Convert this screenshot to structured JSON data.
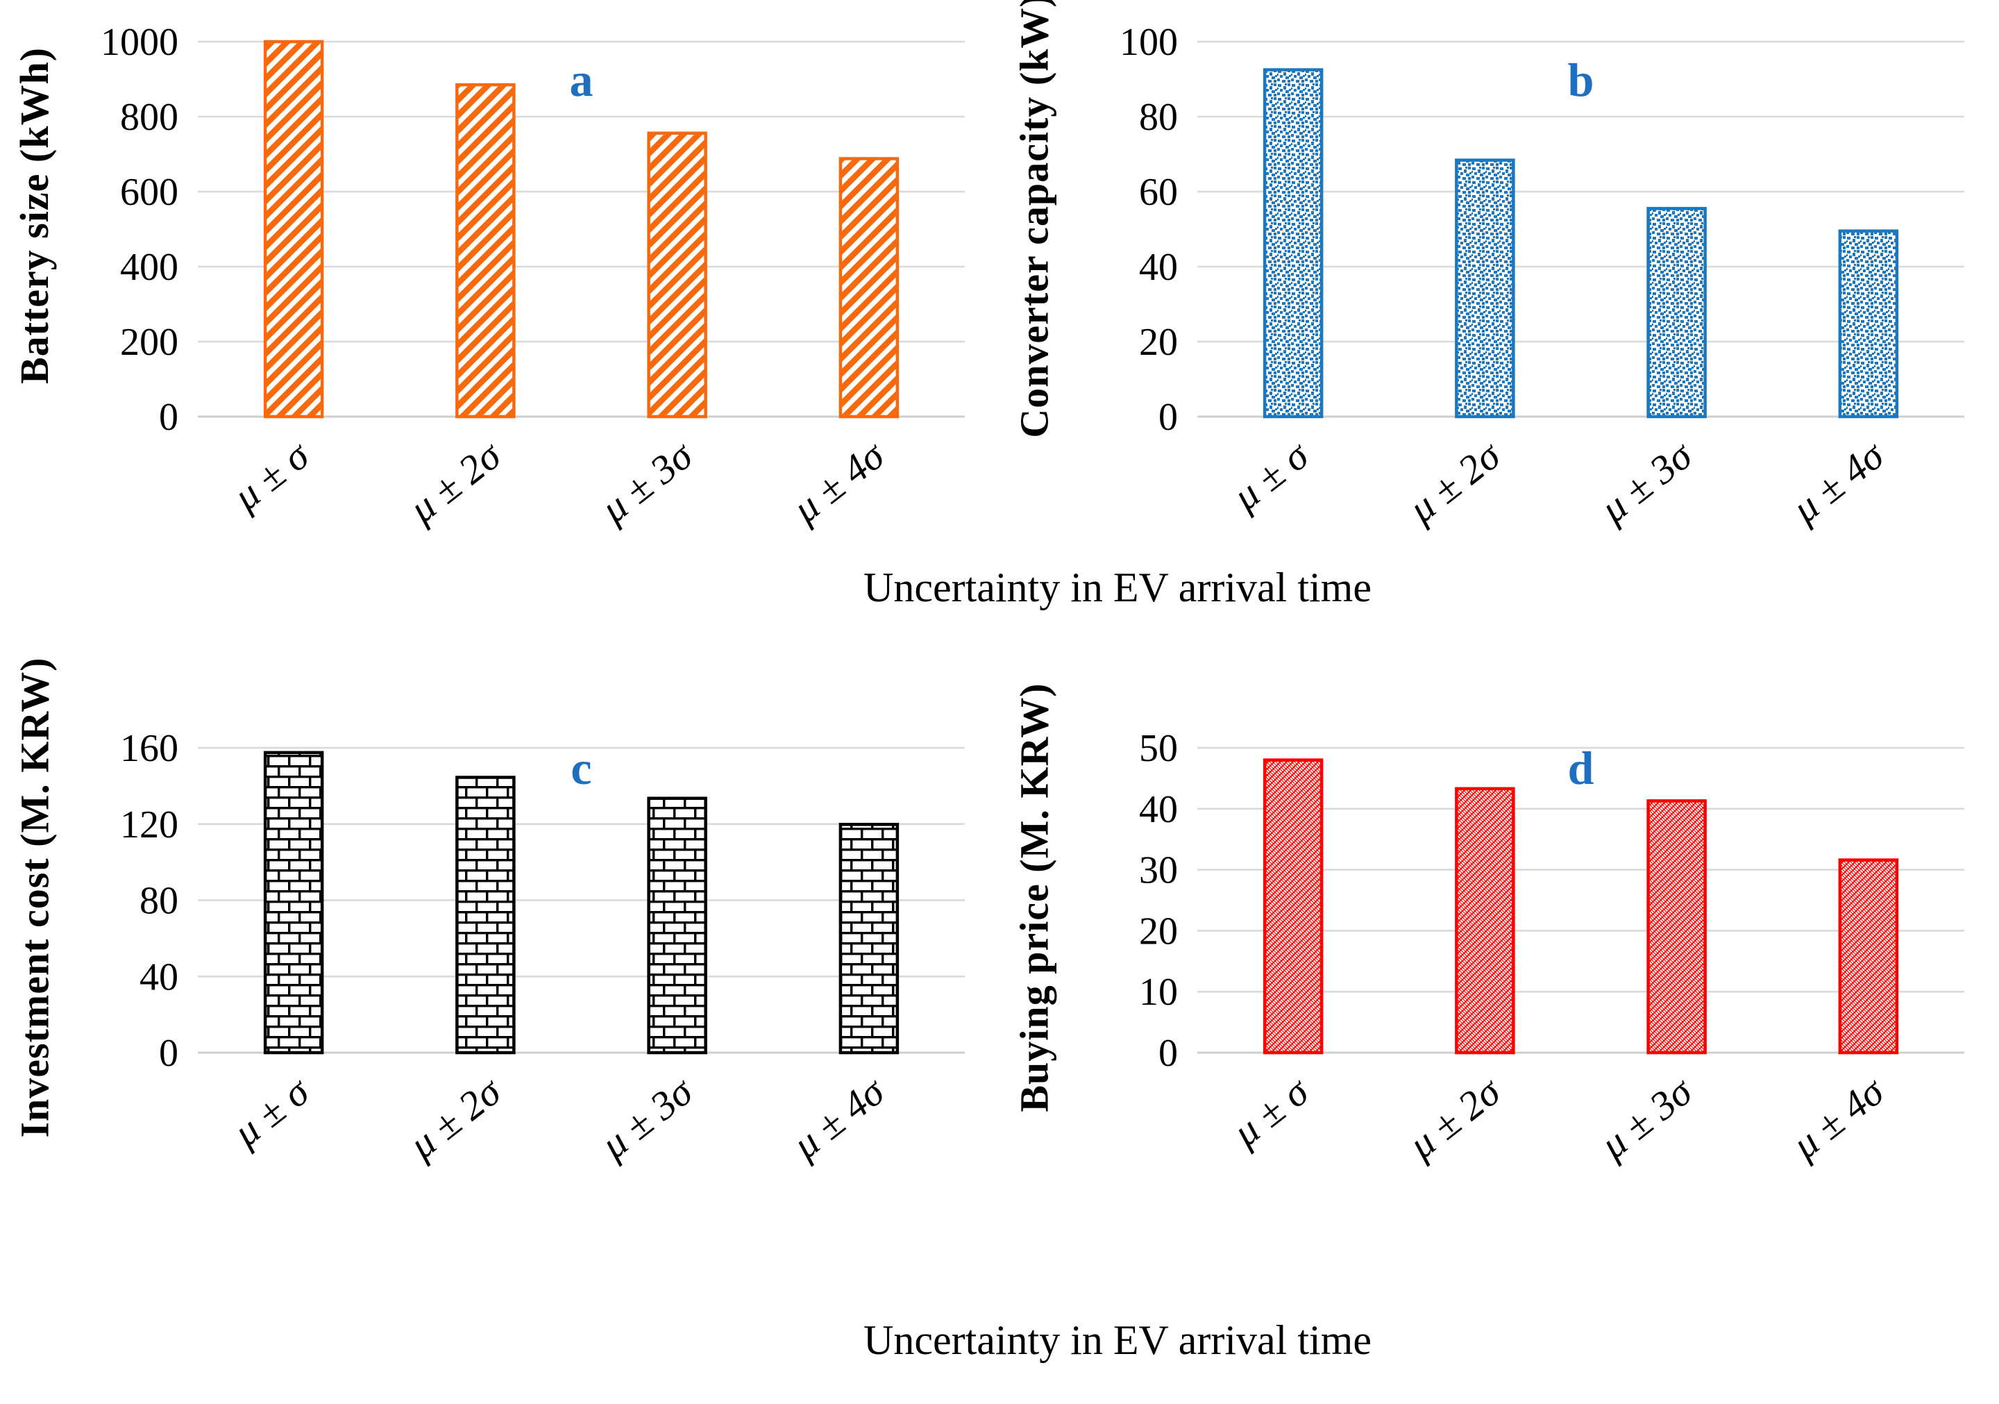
{
  "figure": {
    "x_axis_title": "Uncertainty in EV arrival time",
    "categories": [
      "μ ± σ",
      "μ ± 2σ",
      "μ ± 3σ",
      "μ ± 4σ"
    ],
    "background": "#FFFFFF",
    "gridline_color": "#D9D9D9",
    "baseline_color": "#CFCFCF",
    "panel_letter_color": "#1F6FC0"
  },
  "chart_data": [
    {
      "type": "bar",
      "panel_letter": "a",
      "ylabel": "Battery size (kWh)",
      "xlabel": "Uncertainty in EV arrival time",
      "categories": [
        "μ ± σ",
        "μ ± 2σ",
        "μ ± 3σ",
        "μ ± 4σ"
      ],
      "values": [
        1000,
        885,
        756,
        688
      ],
      "ylim": [
        0,
        1000
      ],
      "ytick_step": 200,
      "grid": true,
      "legend": "none",
      "bar_color": "#F8690D",
      "pattern": "diagonal-stripe"
    },
    {
      "type": "bar",
      "panel_letter": "b",
      "ylabel": "Converter capacity (kW)",
      "xlabel": "Uncertainty in EV arrival time",
      "categories": [
        "μ ± σ",
        "μ ± 2σ",
        "μ ± 3σ",
        "μ ± 4σ"
      ],
      "values": [
        92.5,
        68.4,
        55.5,
        49.5
      ],
      "ylim": [
        0,
        100
      ],
      "ytick_step": 20,
      "grid": true,
      "legend": "none",
      "bar_color": "#1B78C0",
      "pattern": "dots"
    },
    {
      "type": "bar",
      "panel_letter": "c",
      "ylabel": "Investment cost (M. KRW)",
      "xlabel": "Uncertainty in EV arrival time",
      "categories": [
        "μ ± σ",
        "μ ± 2σ",
        "μ ± 3σ",
        "μ ± 4σ"
      ],
      "values": [
        157.5,
        144.5,
        133.5,
        119.8
      ],
      "ylim": [
        0,
        160
      ],
      "ytick_step": 40,
      "grid": true,
      "legend": "none",
      "bar_color": "#000000",
      "pattern": "brick"
    },
    {
      "type": "bar",
      "panel_letter": "d",
      "ylabel": "Buying price (M. KRW)",
      "xlabel": "Uncertainty in EV arrival time",
      "categories": [
        "μ ± σ",
        "μ ± 2σ",
        "μ ± 3σ",
        "μ ± 4σ"
      ],
      "values": [
        48,
        43.3,
        41.3,
        31.6
      ],
      "ylim": [
        0,
        50
      ],
      "ytick_step": 10,
      "grid": true,
      "legend": "none",
      "bar_color": "#FE0000",
      "pattern": "diagonal-weave"
    }
  ]
}
